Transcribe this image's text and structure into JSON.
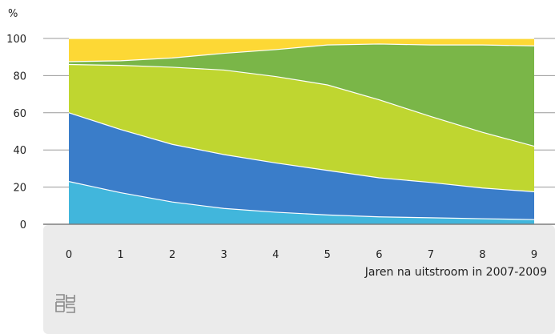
{
  "chart_data": {
    "type": "area",
    "stacked": true,
    "xlabel": "Jaren na uitstroom in 2007-2009",
    "ylabel": "%",
    "x": [
      0,
      1,
      2,
      3,
      4,
      5,
      6,
      7,
      8,
      9
    ],
    "ylim": [
      0,
      100
    ],
    "yticks": [
      0,
      20,
      40,
      60,
      80,
      100
    ],
    "grid": true,
    "series": [
      {
        "color": "#41b6dc",
        "values": [
          23,
          17,
          12,
          8.5,
          6.5,
          5,
          4,
          3.5,
          3,
          2.5
        ]
      },
      {
        "color": "#3a7dc9",
        "values": [
          37,
          34,
          31,
          29,
          26.5,
          24,
          21,
          19,
          16.5,
          15
        ]
      },
      {
        "color": "#bfd630",
        "values": [
          26,
          34.5,
          41.5,
          45.5,
          46.5,
          46,
          42,
          35.5,
          30,
          24.5
        ]
      },
      {
        "color": "#7ab648",
        "values": [
          1.5,
          2.5,
          5,
          9,
          14.5,
          21.5,
          30,
          38.5,
          47,
          54
        ]
      },
      {
        "color": "#fdd835",
        "values": [
          12.5,
          12,
          10.5,
          8,
          6,
          3.5,
          3,
          3.5,
          3.5,
          4
        ]
      }
    ]
  },
  "footer": {
    "logo": "cbs-logo"
  }
}
